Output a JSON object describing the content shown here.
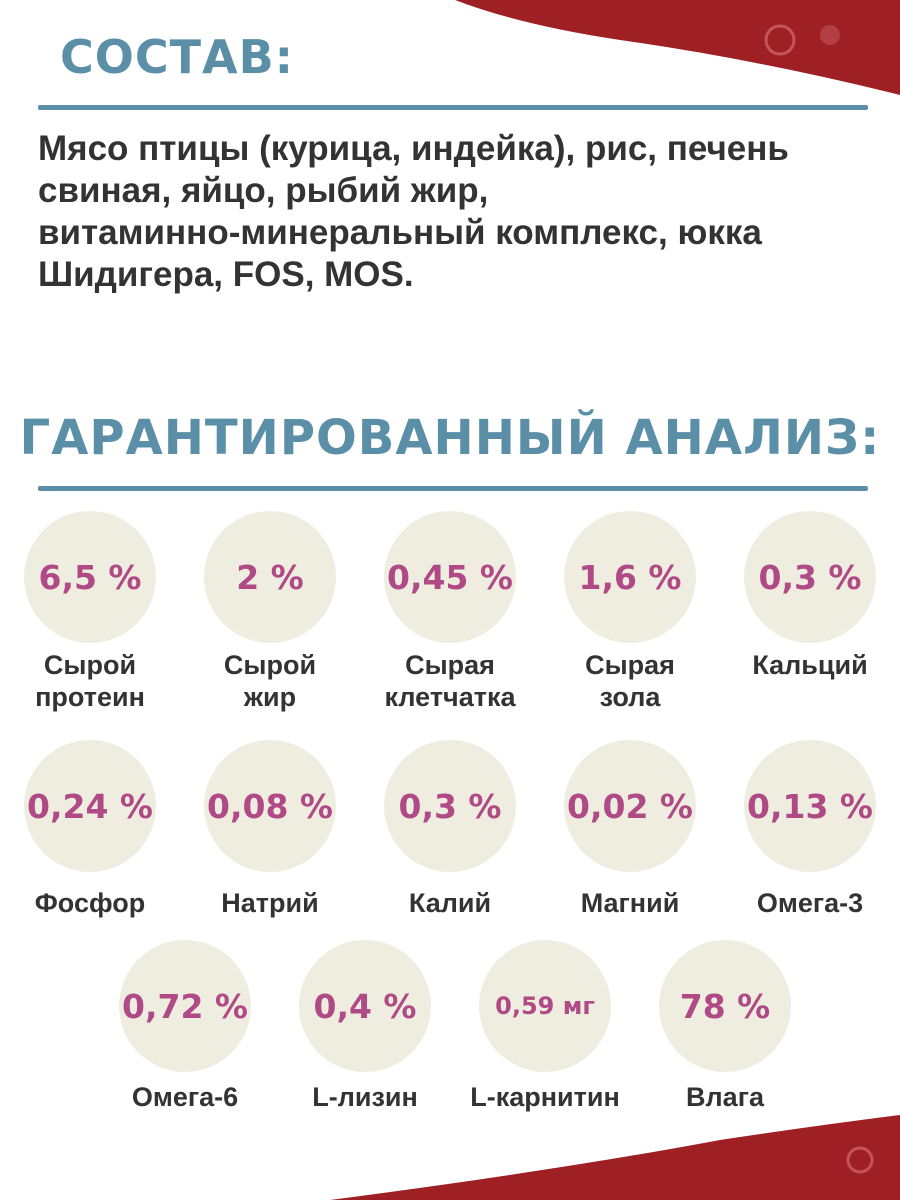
{
  "composition": {
    "title": "СОСТАВ:",
    "lines": [
      "Мясо птицы (курица, индейка), рис, печень",
      "свиная, яйцо, рыбий жир,",
      "витаминно-минеральный комплекс, юкка",
      "Шидигера, FOS, MOS."
    ]
  },
  "analysis": {
    "title": "ГАРАНТИРОВАННЫЙ АНАЛИЗ:",
    "items": [
      {
        "value": "6,5 %",
        "label": [
          "Сырой",
          "протеин"
        ]
      },
      {
        "value": "2 %",
        "label": [
          "Сырой",
          "жир"
        ]
      },
      {
        "value": "0,45 %",
        "label": [
          "Сырая",
          "клетчатка"
        ]
      },
      {
        "value": "1,6 %",
        "label": [
          "Сырая",
          "зола"
        ]
      },
      {
        "value": "0,3 %",
        "label": [
          "Кальций"
        ]
      },
      {
        "value": "0,24 %",
        "label": [
          "Фосфор"
        ]
      },
      {
        "value": "0,08 %",
        "label": [
          "Натрий"
        ]
      },
      {
        "value": "0,3 %",
        "label": [
          "Калий"
        ]
      },
      {
        "value": "0,02 %",
        "label": [
          "Магний"
        ]
      },
      {
        "value": "0,13 %",
        "label": [
          "Омега-3"
        ]
      },
      {
        "value": "0,72 %",
        "label": [
          "Омега-6"
        ]
      },
      {
        "value": "0,4 %",
        "label": [
          "L-лизин"
        ]
      },
      {
        "value": "0,59 мг",
        "label": [
          "L-карнитин"
        ]
      },
      {
        "value": "78 %",
        "label": [
          "Влага"
        ]
      }
    ]
  }
}
